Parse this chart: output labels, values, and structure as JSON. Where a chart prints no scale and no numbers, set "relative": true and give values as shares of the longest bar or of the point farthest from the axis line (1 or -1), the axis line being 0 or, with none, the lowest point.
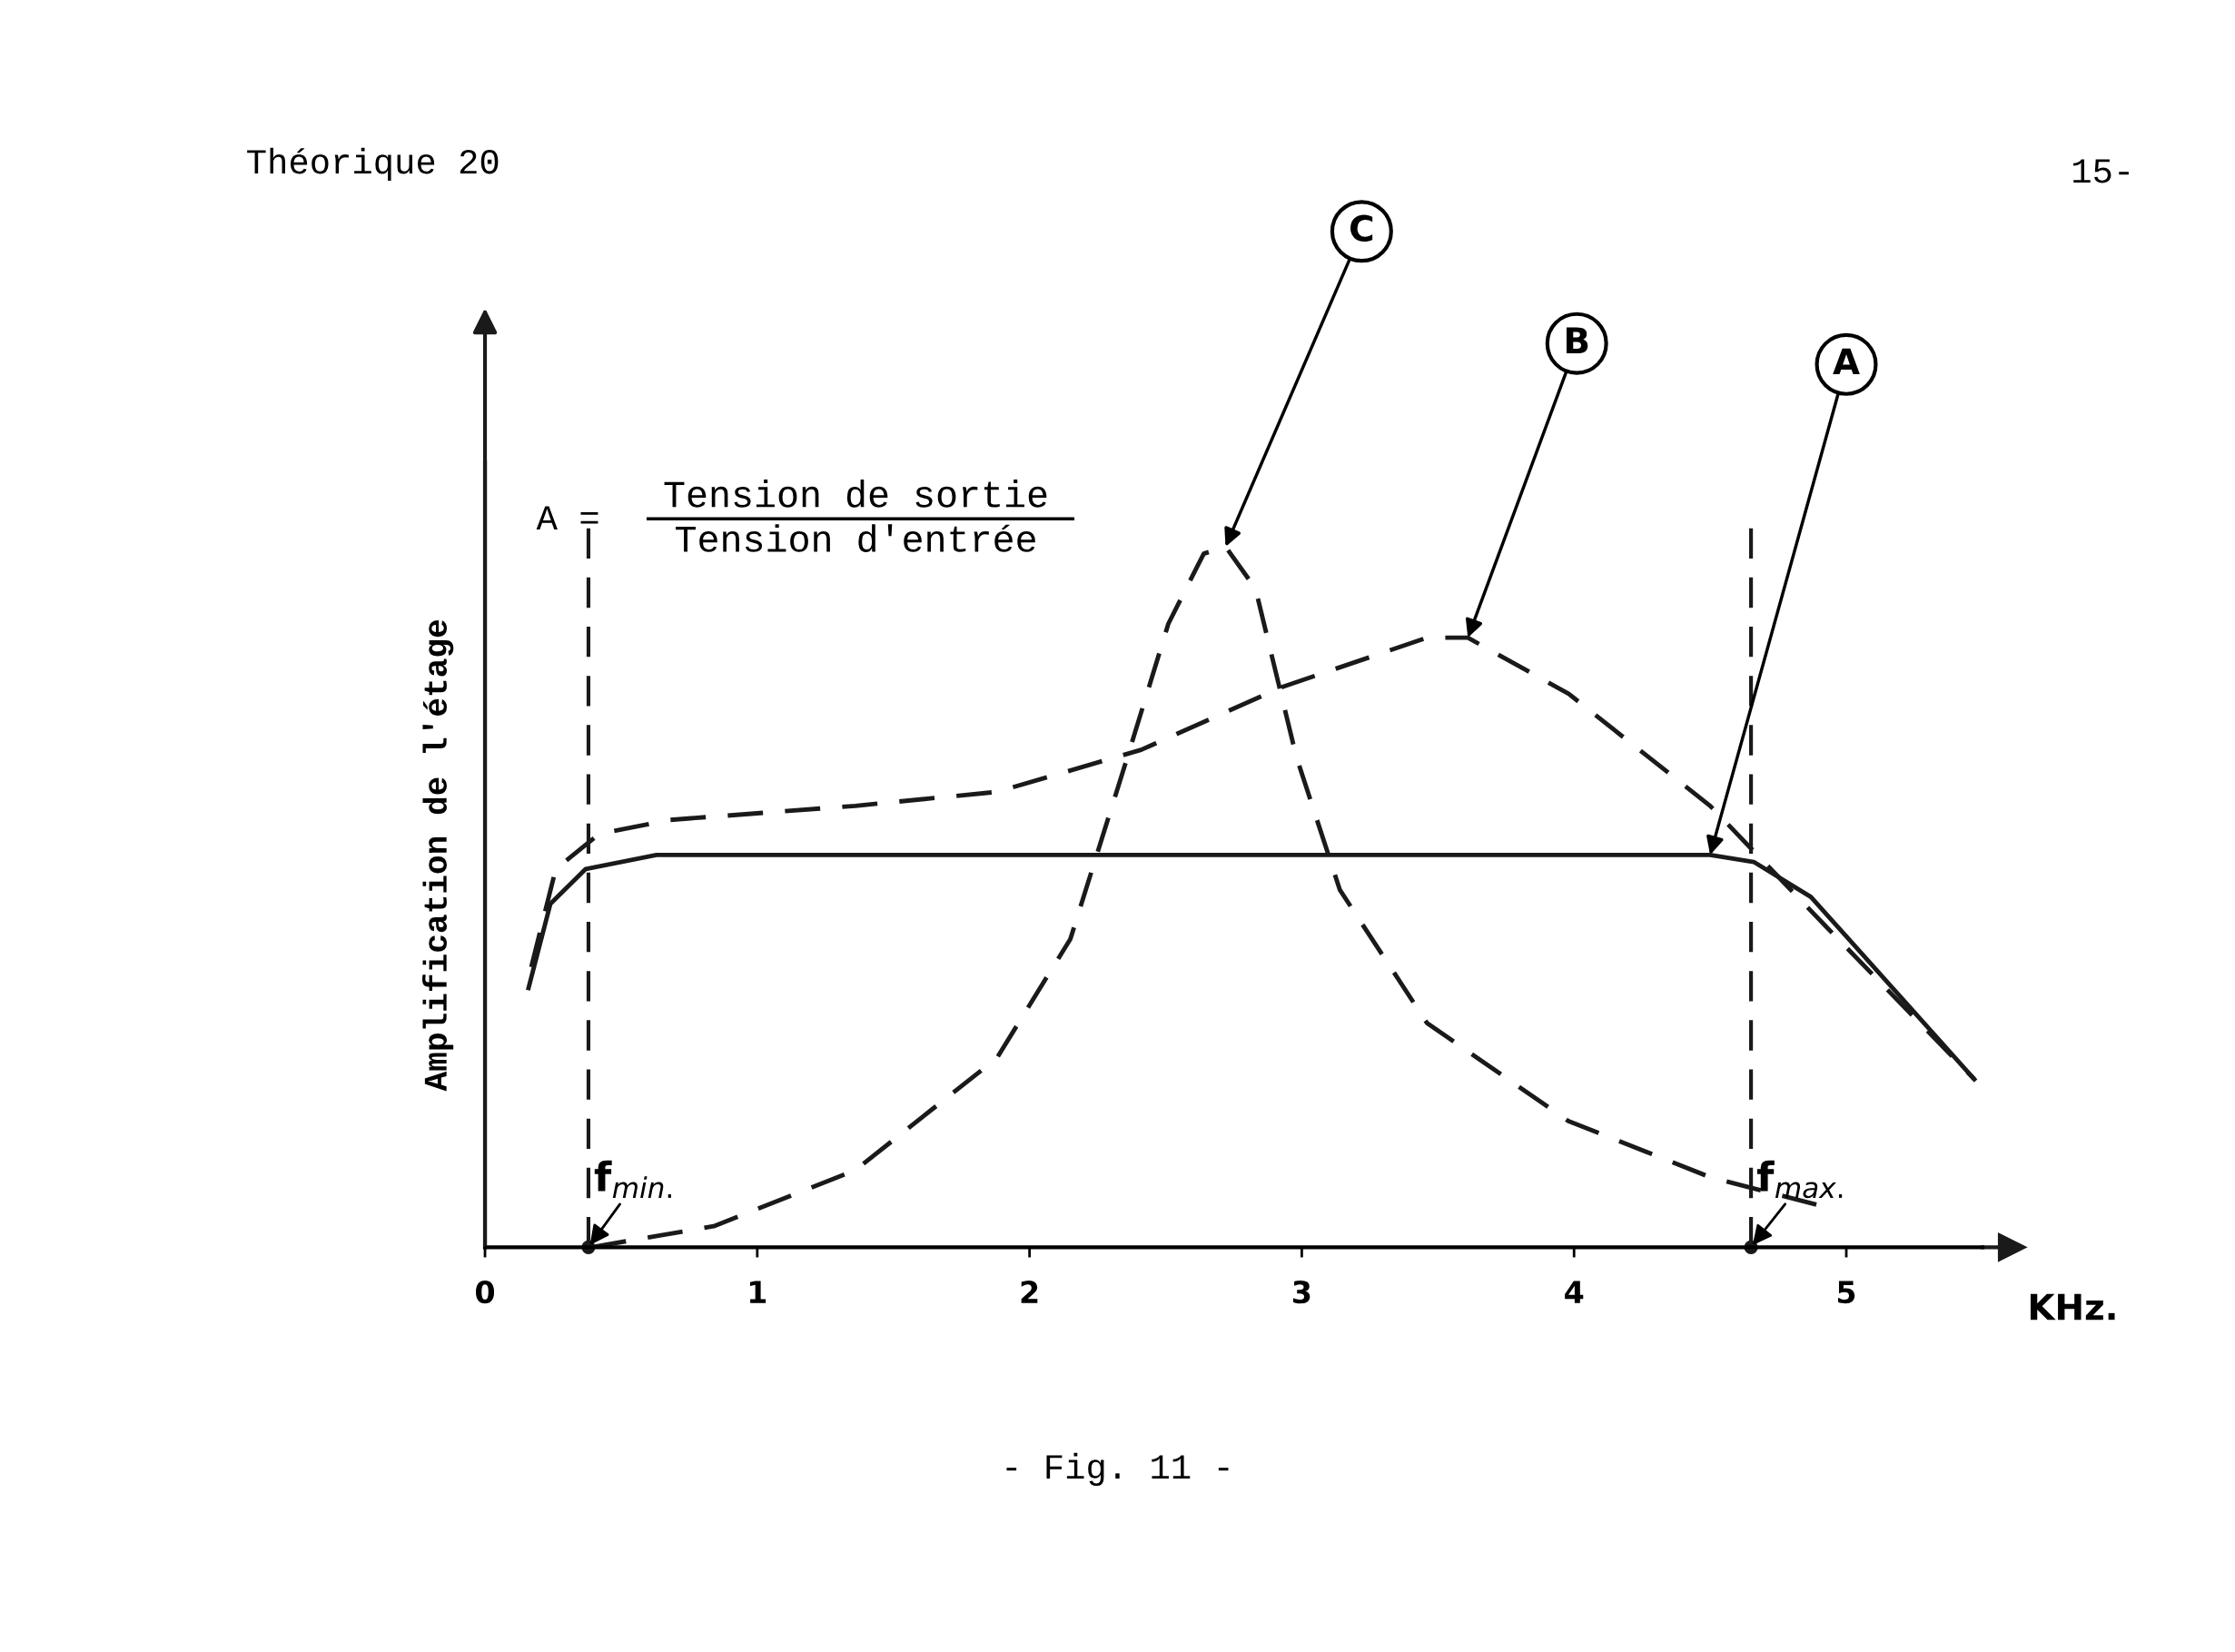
{
  "chart_data": {
    "type": "line",
    "title": "- Fig. 11 -",
    "subtitle": "Théorique 20",
    "ylabel": "Amplification de l'étage",
    "xlabel": "KHz.",
    "relative": true,
    "xlim": [
      0,
      5.5
    ],
    "xticks": [
      0,
      1,
      2,
      3,
      4,
      5
    ],
    "grid": false,
    "series": [
      {
        "color": "#1a1a1a",
        "line_style": "solid",
        "x": [
          0.16,
          0.24,
          0.37,
          0.63,
          2.41,
          4.5,
          4.66,
          4.87,
          5.47
        ],
        "values": [
          0.37,
          0.49,
          0.54,
          0.56,
          0.56,
          0.56,
          0.55,
          0.5,
          0.24
        ]
      },
      {
        "color": "#1a1a1a",
        "line_style": "dashed",
        "x": [
          0.17,
          0.26,
          0.42,
          0.68,
          1.36,
          1.88,
          2.41,
          2.93,
          3.46,
          3.61,
          3.98,
          4.5,
          4.92,
          5.47
        ],
        "values": [
          0.4,
          0.54,
          0.59,
          0.61,
          0.63,
          0.65,
          0.71,
          0.8,
          0.87,
          0.87,
          0.79,
          0.63,
          0.46,
          0.24
        ]
      },
      {
        "color": "#1a1a1a",
        "line_style": "dashed",
        "x": [
          0.39,
          0.84,
          1.36,
          1.88,
          2.15,
          2.36,
          2.51,
          2.64,
          2.72,
          2.83,
          2.98,
          3.14,
          3.46,
          3.98,
          4.5,
          4.9
        ],
        "values": [
          0,
          0.03,
          0.11,
          0.27,
          0.44,
          0.7,
          0.89,
          0.99,
          1.0,
          0.94,
          0.7,
          0.51,
          0.32,
          0.18,
          0.1,
          0.06
        ]
      }
    ],
    "ref_lines": [
      {
        "axis": "x",
        "value": 0.38,
        "label": "f$_{min.}$",
        "color": "#1a1a1a",
        "line_style": "dashed"
      },
      {
        "axis": "x",
        "value": 4.65,
        "label": "f$_{max.}$",
        "color": "#1a1a1a",
        "line_style": "dashed"
      }
    ],
    "annotations": [
      "15-",
      "A =",
      "Tension de sortie",
      "Tension d'entrée",
      {
        "text": "C",
        "x": 2.72,
        "y": 1.0
      },
      {
        "text": "B",
        "x": 3.61,
        "y": 0.87
      },
      {
        "text": "A",
        "x": 4.5,
        "y": 0.56
      }
    ]
  }
}
